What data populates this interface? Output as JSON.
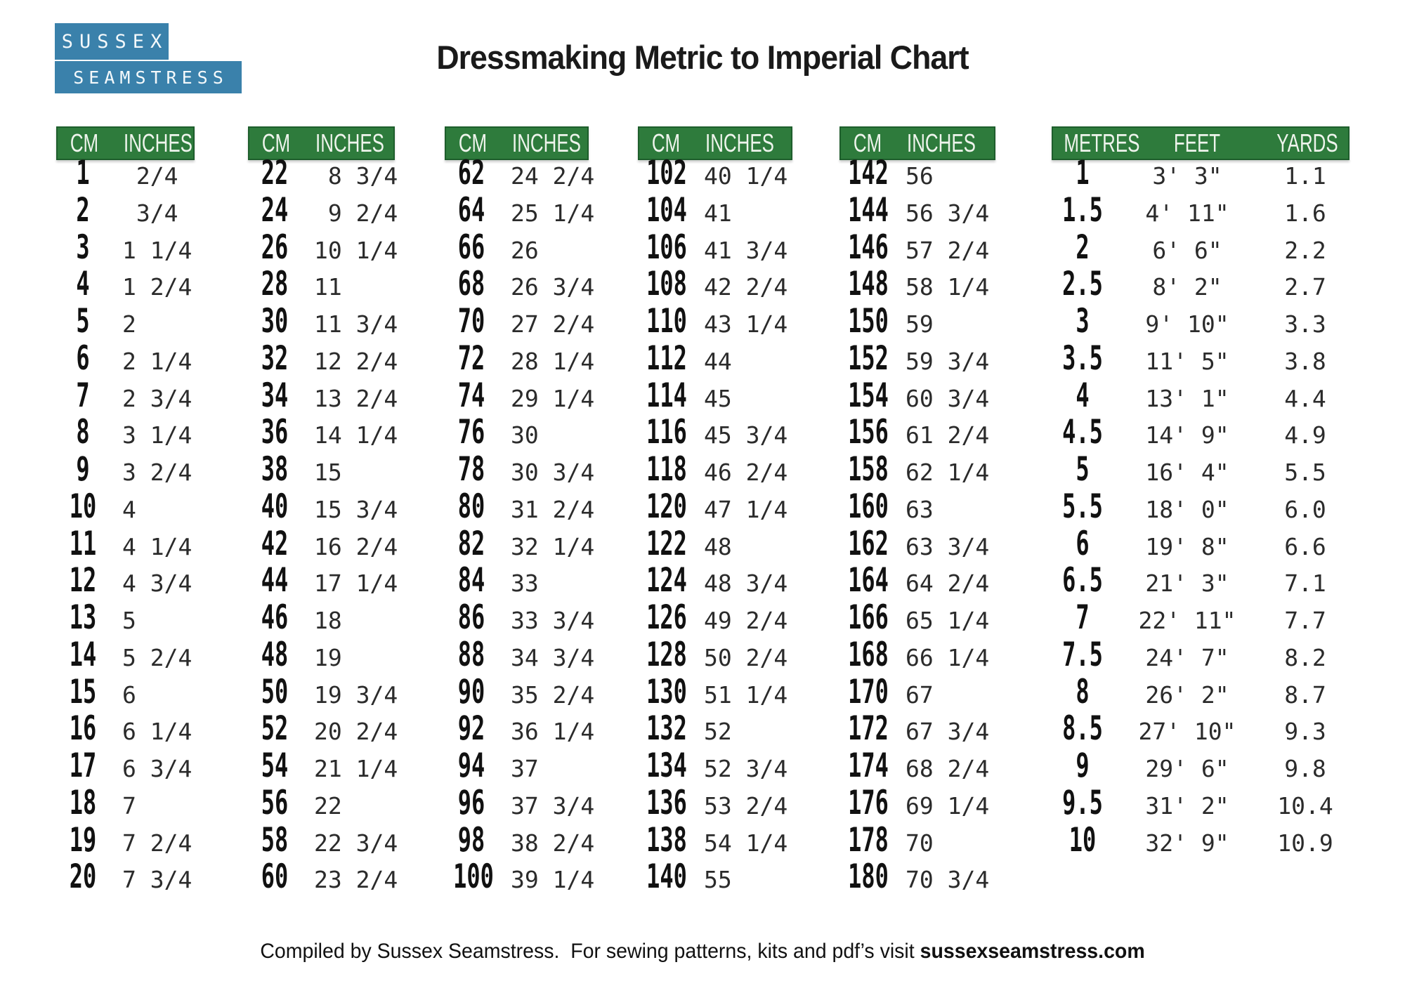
{
  "logo": {
    "line1": "SUSSEX",
    "line2": "SEAMSTRESS"
  },
  "title": "Dressmaking Metric to Imperial Chart",
  "colors": {
    "green": "#2e7b3c",
    "green_border": "#1e5e2c",
    "blue": "#3a81ab"
  },
  "cm_columns": [
    {
      "header": {
        "cm": "CM",
        "inches": "INCHES"
      },
      "rows": [
        {
          "cm": "1",
          "inches": " 2/4"
        },
        {
          "cm": "2",
          "inches": " 3/4"
        },
        {
          "cm": "3",
          "inches": "1 1/4"
        },
        {
          "cm": "4",
          "inches": "1 2/4"
        },
        {
          "cm": "5",
          "inches": "2"
        },
        {
          "cm": "6",
          "inches": "2 1/4"
        },
        {
          "cm": "7",
          "inches": "2 3/4"
        },
        {
          "cm": "8",
          "inches": "3 1/4"
        },
        {
          "cm": "9",
          "inches": "3 2/4"
        },
        {
          "cm": "10",
          "inches": "4"
        },
        {
          "cm": "11",
          "inches": "4 1/4"
        },
        {
          "cm": "12",
          "inches": "4 3/4"
        },
        {
          "cm": "13",
          "inches": "5"
        },
        {
          "cm": "14",
          "inches": "5 2/4"
        },
        {
          "cm": "15",
          "inches": "6"
        },
        {
          "cm": "16",
          "inches": "6 1/4"
        },
        {
          "cm": "17",
          "inches": "6 3/4"
        },
        {
          "cm": "18",
          "inches": "7"
        },
        {
          "cm": "19",
          "inches": "7 2/4"
        },
        {
          "cm": "20",
          "inches": "7 3/4"
        }
      ]
    },
    {
      "header": {
        "cm": "CM",
        "inches": "INCHES"
      },
      "rows": [
        {
          "cm": "22",
          "inches": " 8 3/4"
        },
        {
          "cm": "24",
          "inches": " 9 2/4"
        },
        {
          "cm": "26",
          "inches": "10 1/4"
        },
        {
          "cm": "28",
          "inches": "11"
        },
        {
          "cm": "30",
          "inches": "11 3/4"
        },
        {
          "cm": "32",
          "inches": "12 2/4"
        },
        {
          "cm": "34",
          "inches": "13 2/4"
        },
        {
          "cm": "36",
          "inches": "14 1/4"
        },
        {
          "cm": "38",
          "inches": "15"
        },
        {
          "cm": "40",
          "inches": "15 3/4"
        },
        {
          "cm": "42",
          "inches": "16 2/4"
        },
        {
          "cm": "44",
          "inches": "17 1/4"
        },
        {
          "cm": "46",
          "inches": "18"
        },
        {
          "cm": "48",
          "inches": "19"
        },
        {
          "cm": "50",
          "inches": "19 3/4"
        },
        {
          "cm": "52",
          "inches": "20 2/4"
        },
        {
          "cm": "54",
          "inches": "21 1/4"
        },
        {
          "cm": "56",
          "inches": "22"
        },
        {
          "cm": "58",
          "inches": "22 3/4"
        },
        {
          "cm": "60",
          "inches": "23 2/4"
        }
      ]
    },
    {
      "header": {
        "cm": "CM",
        "inches": "INCHES"
      },
      "rows": [
        {
          "cm": "62",
          "inches": "24 2/4"
        },
        {
          "cm": "64",
          "inches": "25 1/4"
        },
        {
          "cm": "66",
          "inches": "26"
        },
        {
          "cm": "68",
          "inches": "26 3/4"
        },
        {
          "cm": "70",
          "inches": "27 2/4"
        },
        {
          "cm": "72",
          "inches": "28 1/4"
        },
        {
          "cm": "74",
          "inches": "29 1/4"
        },
        {
          "cm": "76",
          "inches": "30"
        },
        {
          "cm": "78",
          "inches": "30 3/4"
        },
        {
          "cm": "80",
          "inches": "31 2/4"
        },
        {
          "cm": "82",
          "inches": "32 1/4"
        },
        {
          "cm": "84",
          "inches": "33"
        },
        {
          "cm": "86",
          "inches": "33 3/4"
        },
        {
          "cm": "88",
          "inches": "34 3/4"
        },
        {
          "cm": "90",
          "inches": "35 2/4"
        },
        {
          "cm": "92",
          "inches": "36 1/4"
        },
        {
          "cm": "94",
          "inches": "37"
        },
        {
          "cm": "96",
          "inches": "37 3/4"
        },
        {
          "cm": "98",
          "inches": "38 2/4"
        },
        {
          "cm": "100",
          "inches": "39 1/4"
        }
      ]
    },
    {
      "header": {
        "cm": "CM",
        "inches": "INCHES"
      },
      "rows": [
        {
          "cm": "102",
          "inches": "40 1/4"
        },
        {
          "cm": "104",
          "inches": "41"
        },
        {
          "cm": "106",
          "inches": "41 3/4"
        },
        {
          "cm": "108",
          "inches": "42 2/4"
        },
        {
          "cm": "110",
          "inches": "43 1/4"
        },
        {
          "cm": "112",
          "inches": "44"
        },
        {
          "cm": "114",
          "inches": "45"
        },
        {
          "cm": "116",
          "inches": "45 3/4"
        },
        {
          "cm": "118",
          "inches": "46 2/4"
        },
        {
          "cm": "120",
          "inches": "47 1/4"
        },
        {
          "cm": "122",
          "inches": "48"
        },
        {
          "cm": "124",
          "inches": "48 3/4"
        },
        {
          "cm": "126",
          "inches": "49 2/4"
        },
        {
          "cm": "128",
          "inches": "50 2/4"
        },
        {
          "cm": "130",
          "inches": "51 1/4"
        },
        {
          "cm": "132",
          "inches": "52"
        },
        {
          "cm": "134",
          "inches": "52 3/4"
        },
        {
          "cm": "136",
          "inches": "53 2/4"
        },
        {
          "cm": "138",
          "inches": "54 1/4"
        },
        {
          "cm": "140",
          "inches": "55"
        }
      ]
    },
    {
      "header": {
        "cm": "CM",
        "inches": "INCHES"
      },
      "rows": [
        {
          "cm": "142",
          "inches": "56"
        },
        {
          "cm": "144",
          "inches": "56 3/4"
        },
        {
          "cm": "146",
          "inches": "57 2/4"
        },
        {
          "cm": "148",
          "inches": "58 1/4"
        },
        {
          "cm": "150",
          "inches": "59"
        },
        {
          "cm": "152",
          "inches": "59 3/4"
        },
        {
          "cm": "154",
          "inches": "60 3/4"
        },
        {
          "cm": "156",
          "inches": "61 2/4"
        },
        {
          "cm": "158",
          "inches": "62 1/4"
        },
        {
          "cm": "160",
          "inches": "63"
        },
        {
          "cm": "162",
          "inches": "63 3/4"
        },
        {
          "cm": "164",
          "inches": "64 2/4"
        },
        {
          "cm": "166",
          "inches": "65 1/4"
        },
        {
          "cm": "168",
          "inches": "66 1/4"
        },
        {
          "cm": "170",
          "inches": "67"
        },
        {
          "cm": "172",
          "inches": "67 3/4"
        },
        {
          "cm": "174",
          "inches": "68 2/4"
        },
        {
          "cm": "176",
          "inches": "69 1/4"
        },
        {
          "cm": "178",
          "inches": "70"
        },
        {
          "cm": "180",
          "inches": "70 3/4"
        }
      ]
    }
  ],
  "metric_column": {
    "header": {
      "metres": "METRES",
      "feet": "FEET",
      "yards": "YARDS"
    },
    "rows": [
      {
        "metres": "1",
        "feet": "3' 3\"",
        "yards": "1.1"
      },
      {
        "metres": "1.5",
        "feet": "4' 11\"",
        "yards": "1.6"
      },
      {
        "metres": "2",
        "feet": "6' 6\"",
        "yards": "2.2"
      },
      {
        "metres": "2.5",
        "feet": "8' 2\"",
        "yards": "2.7"
      },
      {
        "metres": "3",
        "feet": "9' 10\"",
        "yards": "3.3"
      },
      {
        "metres": "3.5",
        "feet": "11' 5\"",
        "yards": "3.8"
      },
      {
        "metres": "4",
        "feet": "13' 1\"",
        "yards": "4.4"
      },
      {
        "metres": "4.5",
        "feet": "14' 9\"",
        "yards": "4.9"
      },
      {
        "metres": "5",
        "feet": "16' 4\"",
        "yards": "5.5"
      },
      {
        "metres": "5.5",
        "feet": "18' 0\"",
        "yards": "6.0"
      },
      {
        "metres": "6",
        "feet": "19' 8\"",
        "yards": "6.6"
      },
      {
        "metres": "6.5",
        "feet": "21' 3\"",
        "yards": "7.1"
      },
      {
        "metres": "7",
        "feet": "22' 11\"",
        "yards": "7.7"
      },
      {
        "metres": "7.5",
        "feet": "24' 7\"",
        "yards": "8.2"
      },
      {
        "metres": "8",
        "feet": "26' 2\"",
        "yards": "8.7"
      },
      {
        "metres": "8.5",
        "feet": "27' 10\"",
        "yards": "9.3"
      },
      {
        "metres": "9",
        "feet": "29' 6\"",
        "yards": "9.8"
      },
      {
        "metres": "9.5",
        "feet": "31' 2\"",
        "yards": "10.4"
      },
      {
        "metres": "10",
        "feet": "32' 9\"",
        "yards": "10.9"
      }
    ]
  },
  "footer": {
    "text_regular": "Compiled by Sussex Seamstress.  For sewing patterns, kits and pdf’s visit ",
    "text_bold": "sussexseamstress.com"
  }
}
